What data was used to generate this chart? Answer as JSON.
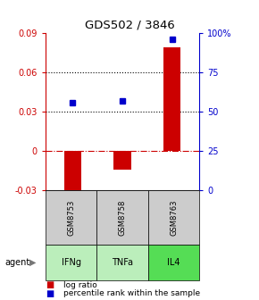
{
  "title": "GDS502 / 3846",
  "samples": [
    "GSM8753",
    "GSM8758",
    "GSM8763"
  ],
  "agents": [
    "IFNg",
    "TNFa",
    "IL4"
  ],
  "log_ratios": [
    -0.036,
    -0.014,
    0.079
  ],
  "percentile_ranks_pct": [
    0.56,
    0.57,
    0.96
  ],
  "left_ylim": [
    -0.03,
    0.09
  ],
  "right_ylim": [
    0.0,
    1.0
  ],
  "left_yticks": [
    -0.03,
    0,
    0.03,
    0.06,
    0.09
  ],
  "left_ytick_labels": [
    "-0.03",
    "0",
    "0.03",
    "0.06",
    "0.09"
  ],
  "right_yticks": [
    0.0,
    0.25,
    0.5,
    0.75,
    1.0
  ],
  "right_ytick_labels": [
    "0",
    "25",
    "50",
    "75",
    "100%"
  ],
  "dotted_lines": [
    0.03,
    0.06
  ],
  "bar_color": "#cc0000",
  "dot_color": "#0000cc",
  "agent_colors": [
    "#bbeebb",
    "#bbeebb",
    "#55dd55"
  ],
  "sample_bg_color": "#cccccc",
  "legend_items": [
    "log ratio",
    "percentile rank within the sample"
  ],
  "legend_colors": [
    "#cc0000",
    "#0000cc"
  ],
  "bar_width": 0.35
}
